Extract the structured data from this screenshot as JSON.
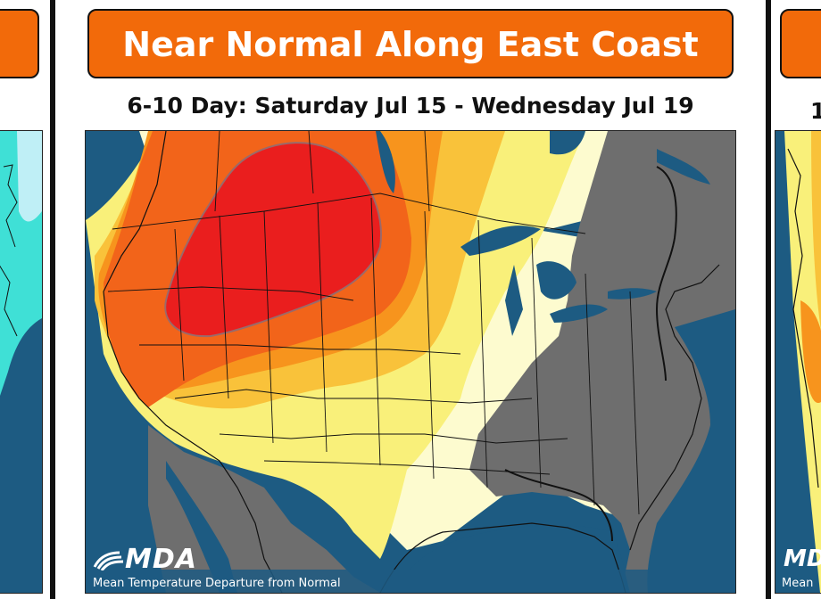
{
  "main_panel": {
    "title": "Near Normal Along East Coast",
    "subtitle": "6-10 Day: Saturday Jul 15 - Wednesday Jul 19",
    "logo_text": "MDA",
    "caption": "Mean Temperature Departure from Normal"
  },
  "right_panel": {
    "subtitle_partial": "1",
    "logo_text": "MDA",
    "caption_partial": "Mean"
  },
  "colors": {
    "banner": "#f26a0a",
    "ocean": "#1d5b82",
    "lake": "#1d5b82",
    "neutral_gray": "#6e6e6e",
    "light_yellow": "#fdfbcf",
    "yellow": "#f9f07a",
    "light_orange": "#f9c23a",
    "orange": "#f7941d",
    "dark_orange": "#f2641a",
    "red": "#ea1e1e",
    "cyan": "#3fe0d6",
    "light_cyan": "#bfeff6"
  },
  "legend": {
    "zones": [
      "red",
      "dark_orange",
      "orange",
      "light_orange",
      "yellow",
      "light_yellow",
      "neutral_gray"
    ]
  }
}
